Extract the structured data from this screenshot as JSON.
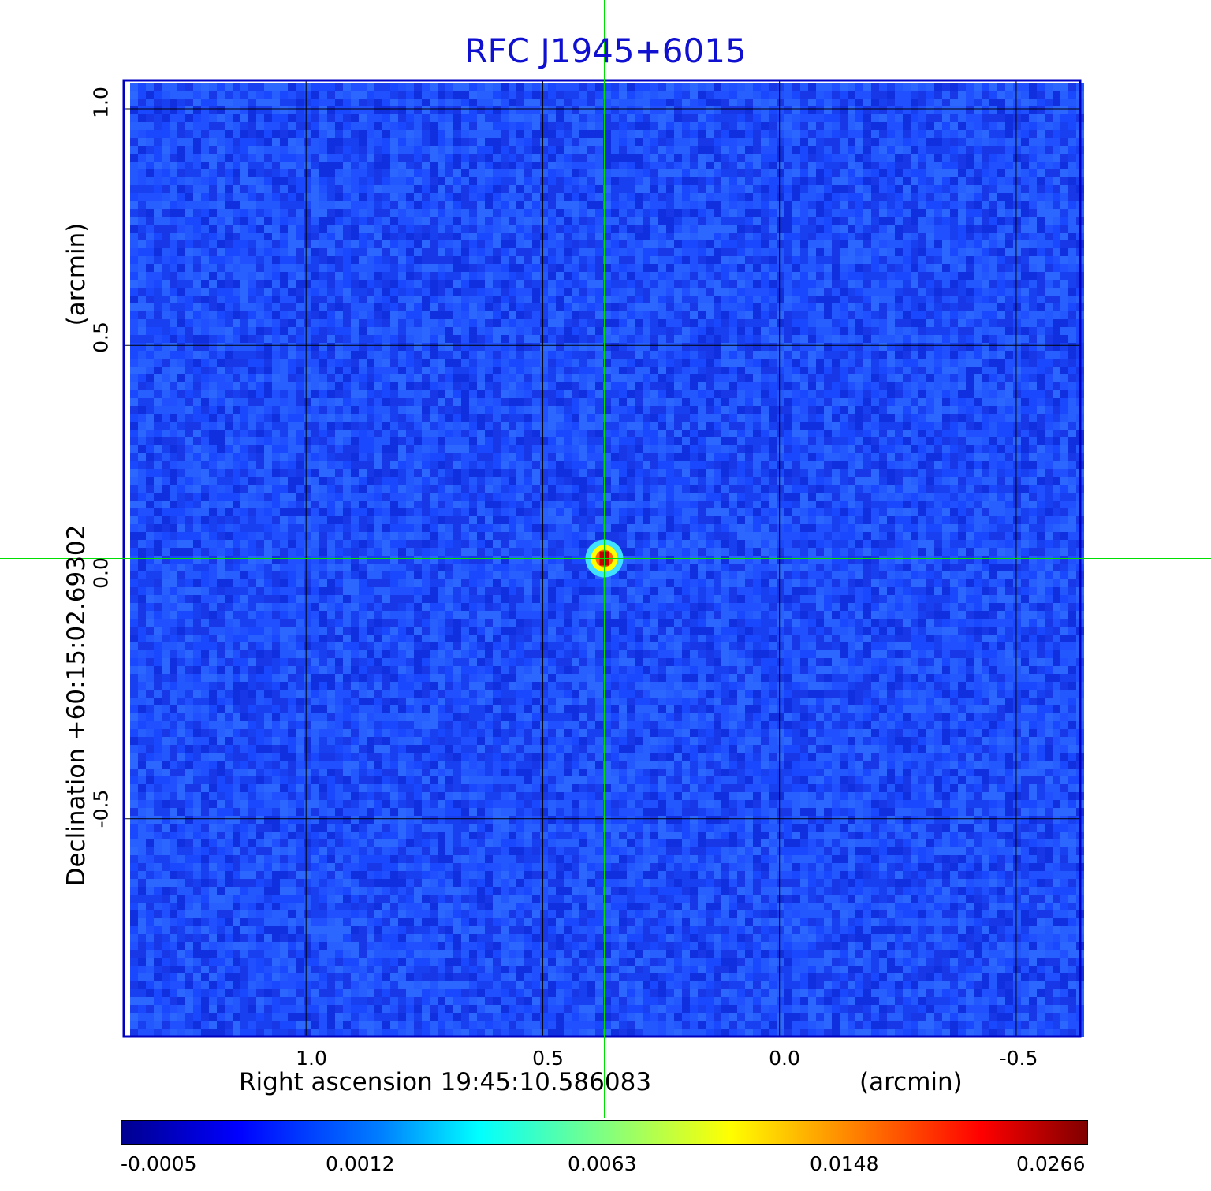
{
  "chart_data": {
    "type": "heatmap",
    "title": "RFC J1945+6015",
    "xlabel": "Right ascension  19:45:10.586083",
    "xunit": "(arcmin)",
    "ylabel": "Declination  +60:15:02.69302",
    "yunit": "(arcmin)",
    "x_ticks": [
      "1.0",
      "0.5",
      "0.0",
      "-0.5"
    ],
    "y_ticks": [
      "1.0",
      "0.5",
      "0.0",
      "-0.5"
    ],
    "x_tick_values": [
      1.0,
      0.5,
      0.0,
      -0.5
    ],
    "y_tick_values": [
      1.0,
      0.5,
      0.0,
      -0.5
    ],
    "xlim": [
      1.385,
      -0.635
    ],
    "ylim": [
      -0.96,
      1.06
    ],
    "grid": true,
    "source": {
      "x": 0.37,
      "y": 0.05,
      "peak": 0.0266
    },
    "crosshair": {
      "x": 0.37,
      "y": 0.05
    },
    "colorbar": {
      "colormap": "jet",
      "ticks": [
        "-0.0005",
        "0.0012",
        "0.0063",
        "0.0148",
        "0.0266"
      ],
      "tick_values": [
        -0.0005,
        0.0012,
        0.0063,
        0.0148,
        0.0266
      ],
      "range": [
        -0.0005,
        0.0266
      ]
    }
  },
  "colors": {
    "title": "#1010d0",
    "frame": "#0000c0",
    "crosshair": "#00e000",
    "grid": "#000000",
    "background_field": "#2050ff"
  }
}
